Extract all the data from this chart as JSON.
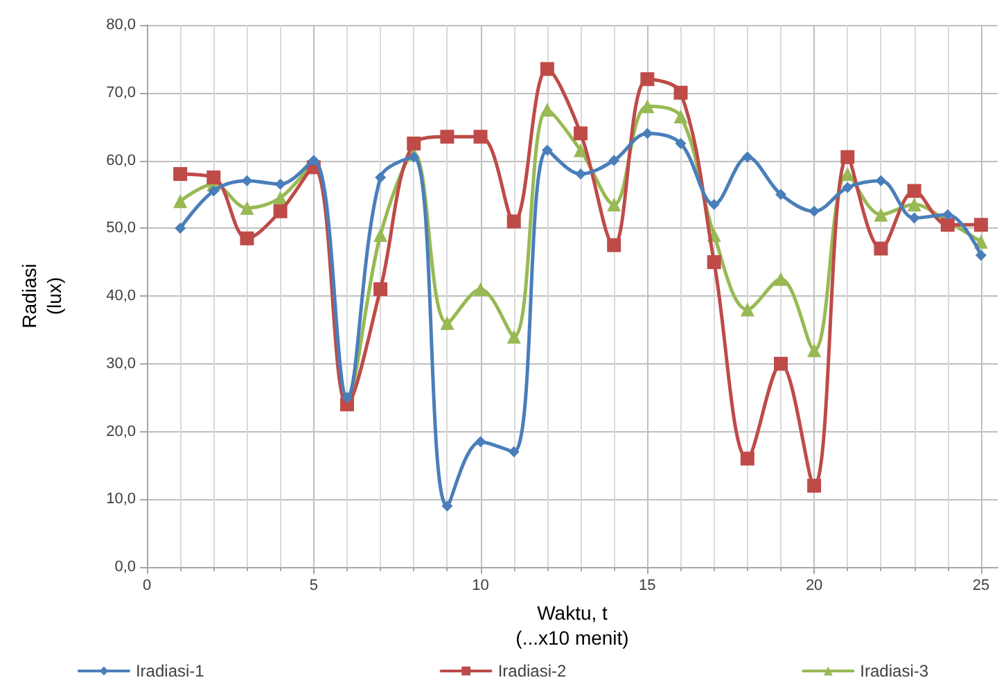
{
  "chart_data": {
    "type": "line",
    "xlabel": "Waktu, t\n(...x10 menit)",
    "ylabel": "Radiasi\n(lux)",
    "x": [
      1,
      2,
      3,
      4,
      5,
      6,
      7,
      8,
      9,
      10,
      11,
      12,
      13,
      14,
      15,
      16,
      17,
      18,
      19,
      20,
      21,
      22,
      23,
      24,
      25
    ],
    "series": [
      {
        "name": "Iradiasi-1",
        "color": "#4a7ebb",
        "marker": "diamond",
        "values": [
          50,
          55.5,
          57,
          56.5,
          60,
          25,
          57.5,
          60.5,
          9,
          18.5,
          17,
          61.5,
          58,
          60,
          64,
          62.5,
          53.5,
          60.5,
          55,
          52.5,
          56,
          57,
          51.5,
          52,
          46
        ]
      },
      {
        "name": "Iradiasi-2",
        "color": "#be4b48",
        "marker": "square",
        "values": [
          58,
          57.5,
          48.5,
          52.5,
          59,
          24,
          41,
          62.5,
          63.5,
          63.5,
          51,
          73.5,
          64,
          47.5,
          72,
          70,
          45,
          16,
          30,
          12,
          60.5,
          47,
          55.5,
          50.5,
          50.5
        ]
      },
      {
        "name": "Iradiasi-3",
        "color": "#98b954",
        "marker": "triangle",
        "values": [
          54,
          56.5,
          53,
          54.5,
          59.5,
          25,
          49,
          61,
          36,
          41,
          34,
          67.5,
          61.5,
          53.5,
          68,
          66.5,
          49,
          38,
          42.5,
          32,
          58,
          52,
          53.5,
          51,
          48
        ]
      }
    ],
    "xlim": [
      0,
      25.5
    ],
    "xticks": [
      0,
      5,
      10,
      15,
      20,
      25
    ],
    "ylim": [
      0,
      80
    ],
    "yticks": [
      {
        "value": 0,
        "label": "0,0"
      },
      {
        "value": 10,
        "label": "10,0"
      },
      {
        "value": 20,
        "label": "20,0"
      },
      {
        "value": 30,
        "label": "30,0"
      },
      {
        "value": 40,
        "label": "40,0"
      },
      {
        "value": 50,
        "label": "50,0"
      },
      {
        "value": 60,
        "label": "60,0"
      },
      {
        "value": 70,
        "label": "70,0"
      },
      {
        "value": 80,
        "label": "80,0"
      }
    ],
    "grid": true,
    "legend": "bottom",
    "line_style": "solid"
  }
}
